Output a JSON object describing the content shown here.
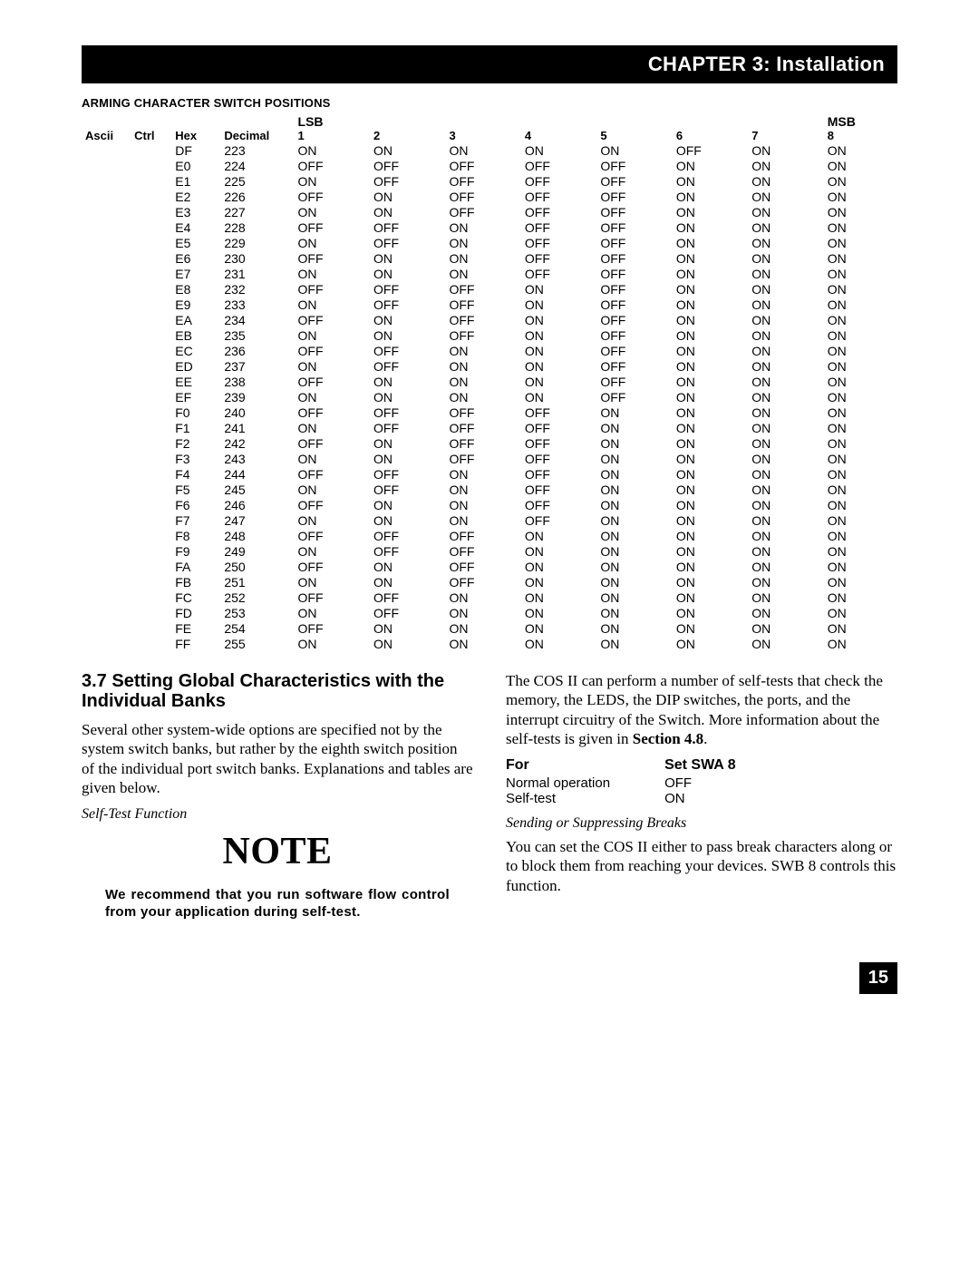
{
  "chapter_bar": "CHAPTER 3: Installation",
  "table_title": "ARMING CHARACTER SWITCH POSITIONS",
  "lsb_label": "LSB",
  "msb_label": "MSB",
  "headers": [
    "Ascii",
    "Ctrl",
    "Hex",
    "Decimal",
    "1",
    "2",
    "3",
    "4",
    "5",
    "6",
    "7",
    "8"
  ],
  "rows": [
    [
      "",
      "",
      "DF",
      "223",
      "ON",
      "ON",
      "ON",
      "ON",
      "ON",
      "OFF",
      "ON",
      "ON"
    ],
    [
      "",
      "",
      "E0",
      "224",
      "OFF",
      "OFF",
      "OFF",
      "OFF",
      "OFF",
      "ON",
      "ON",
      "ON"
    ],
    [
      "",
      "",
      "E1",
      "225",
      "ON",
      "OFF",
      "OFF",
      "OFF",
      "OFF",
      "ON",
      "ON",
      "ON"
    ],
    [
      "",
      "",
      "E2",
      "226",
      "OFF",
      "ON",
      "OFF",
      "OFF",
      "OFF",
      "ON",
      "ON",
      "ON"
    ],
    [
      "",
      "",
      "E3",
      "227",
      "ON",
      "ON",
      "OFF",
      "OFF",
      "OFF",
      "ON",
      "ON",
      "ON"
    ],
    [
      "",
      "",
      "E4",
      "228",
      "OFF",
      "OFF",
      "ON",
      "OFF",
      "OFF",
      "ON",
      "ON",
      "ON"
    ],
    [
      "",
      "",
      "E5",
      "229",
      "ON",
      "OFF",
      "ON",
      "OFF",
      "OFF",
      "ON",
      "ON",
      "ON"
    ],
    [
      "",
      "",
      "E6",
      "230",
      "OFF",
      "ON",
      "ON",
      "OFF",
      "OFF",
      "ON",
      "ON",
      "ON"
    ],
    [
      "",
      "",
      "E7",
      "231",
      "ON",
      "ON",
      "ON",
      "OFF",
      "OFF",
      "ON",
      "ON",
      "ON"
    ],
    [
      "",
      "",
      "E8",
      "232",
      "OFF",
      "OFF",
      "OFF",
      "ON",
      "OFF",
      "ON",
      "ON",
      "ON"
    ],
    [
      "",
      "",
      "E9",
      "233",
      "ON",
      "OFF",
      "OFF",
      "ON",
      "OFF",
      "ON",
      "ON",
      "ON"
    ],
    [
      "",
      "",
      "EA",
      "234",
      "OFF",
      "ON",
      "OFF",
      "ON",
      "OFF",
      "ON",
      "ON",
      "ON"
    ],
    [
      "",
      "",
      "EB",
      "235",
      "ON",
      "ON",
      "OFF",
      "ON",
      "OFF",
      "ON",
      "ON",
      "ON"
    ],
    [
      "",
      "",
      "EC",
      "236",
      "OFF",
      "OFF",
      "ON",
      "ON",
      "OFF",
      "ON",
      "ON",
      "ON"
    ],
    [
      "",
      "",
      "ED",
      "237",
      "ON",
      "OFF",
      "ON",
      "ON",
      "OFF",
      "ON",
      "ON",
      "ON"
    ],
    [
      "",
      "",
      "EE",
      "238",
      "OFF",
      "ON",
      "ON",
      "ON",
      "OFF",
      "ON",
      "ON",
      "ON"
    ],
    [
      "",
      "",
      "EF",
      "239",
      "ON",
      "ON",
      "ON",
      "ON",
      "OFF",
      "ON",
      "ON",
      "ON"
    ],
    [
      "",
      "",
      "F0",
      "240",
      "OFF",
      "OFF",
      "OFF",
      "OFF",
      "ON",
      "ON",
      "ON",
      "ON"
    ],
    [
      "",
      "",
      "F1",
      "241",
      "ON",
      "OFF",
      "OFF",
      "OFF",
      "ON",
      "ON",
      "ON",
      "ON"
    ],
    [
      "",
      "",
      "F2",
      "242",
      "OFF",
      "ON",
      "OFF",
      "OFF",
      "ON",
      "ON",
      "ON",
      "ON"
    ],
    [
      "",
      "",
      "F3",
      "243",
      "ON",
      "ON",
      "OFF",
      "OFF",
      "ON",
      "ON",
      "ON",
      "ON"
    ],
    [
      "",
      "",
      "F4",
      "244",
      "OFF",
      "OFF",
      "ON",
      "OFF",
      "ON",
      "ON",
      "ON",
      "ON"
    ],
    [
      "",
      "",
      "F5",
      "245",
      "ON",
      "OFF",
      "ON",
      "OFF",
      "ON",
      "ON",
      "ON",
      "ON"
    ],
    [
      "",
      "",
      "F6",
      "246",
      "OFF",
      "ON",
      "ON",
      "OFF",
      "ON",
      "ON",
      "ON",
      "ON"
    ],
    [
      "",
      "",
      "F7",
      "247",
      "ON",
      "ON",
      "ON",
      "OFF",
      "ON",
      "ON",
      "ON",
      "ON"
    ],
    [
      "",
      "",
      "F8",
      "248",
      "OFF",
      "OFF",
      "OFF",
      "ON",
      "ON",
      "ON",
      "ON",
      "ON"
    ],
    [
      "",
      "",
      "F9",
      "249",
      "ON",
      "OFF",
      "OFF",
      "ON",
      "ON",
      "ON",
      "ON",
      "ON"
    ],
    [
      "",
      "",
      "FA",
      "250",
      "OFF",
      "ON",
      "OFF",
      "ON",
      "ON",
      "ON",
      "ON",
      "ON"
    ],
    [
      "",
      "",
      "FB",
      "251",
      "ON",
      "ON",
      "OFF",
      "ON",
      "ON",
      "ON",
      "ON",
      "ON"
    ],
    [
      "",
      "",
      "FC",
      "252",
      "OFF",
      "OFF",
      "ON",
      "ON",
      "ON",
      "ON",
      "ON",
      "ON"
    ],
    [
      "",
      "",
      "FD",
      "253",
      "ON",
      "OFF",
      "ON",
      "ON",
      "ON",
      "ON",
      "ON",
      "ON"
    ],
    [
      "",
      "",
      "FE",
      "254",
      "OFF",
      "ON",
      "ON",
      "ON",
      "ON",
      "ON",
      "ON",
      "ON"
    ],
    [
      "",
      "",
      "FF",
      "255",
      "ON",
      "ON",
      "ON",
      "ON",
      "ON",
      "ON",
      "ON",
      "ON"
    ]
  ],
  "left_col": {
    "heading": "3.7 Setting Global Characteristics with the Individual Banks",
    "para1": "Several other system-wide options are specified not by the system switch banks, but rather by the eighth switch position of the individual port switch banks. Explanations and tables are given below.",
    "subhead": "Self-Test Function",
    "note_label": "NOTE",
    "note_body": "We recommend that you run software flow control from your application during self-test."
  },
  "right_col": {
    "para1_a": "The COS II can perform a number of self-tests that check the memory, the LEDS, the DIP switches, the ports, and the interrupt circuitry of the Switch. More information about the self-tests is given in ",
    "para1_b": "Section 4.8",
    "para1_c": ".",
    "swa_header_for": "For",
    "swa_header_set": "Set SWA 8",
    "swa_rows": [
      [
        "Normal operation",
        "OFF"
      ],
      [
        "Self-test",
        "ON"
      ]
    ],
    "subhead": "Sending or Suppressing Breaks",
    "para2": "You can set the COS II either to pass break characters along or to block them from reaching your devices. SWB 8 controls this function."
  },
  "page_number": "15",
  "col_widths_pct": [
    6,
    5,
    6,
    9,
    9.25,
    9.25,
    9.25,
    9.25,
    9.25,
    9.25,
    9.25,
    9
  ],
  "colors": {
    "bg": "#ffffff",
    "text": "#000000",
    "bar_bg": "#000000",
    "bar_fg": "#ffffff"
  }
}
